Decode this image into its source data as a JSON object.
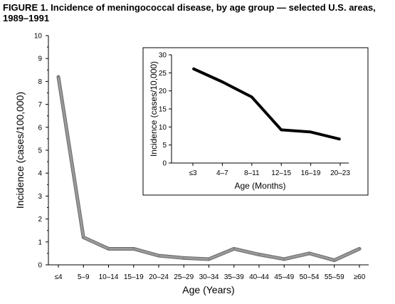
{
  "figure": {
    "title": "FIGURE 1. Incidence of meningococcal disease, by age group — selected U.S. areas, 1989–1991"
  },
  "chart_data": [
    {
      "type": "line",
      "xlabel": "Age (Years)",
      "ylabel": "Incidence (cases/100,000)",
      "ylim": [
        0,
        10
      ],
      "yticks": [
        "0",
        "1",
        "2",
        "3",
        "4",
        "5",
        "6",
        "7",
        "8",
        "9",
        "10"
      ],
      "categories": [
        "≤4",
        "5–9",
        "10–14",
        "15–19",
        "20–24",
        "25–29",
        "30–34",
        "35–39",
        "40–44",
        "45–49",
        "50–54",
        "55–59",
        "≥60"
      ],
      "values": [
        8.2,
        1.2,
        0.7,
        0.7,
        0.4,
        0.3,
        0.25,
        0.7,
        0.45,
        0.25,
        0.5,
        0.2,
        0.7
      ],
      "grid": false,
      "line_color": "#9a9a9a"
    },
    {
      "type": "line",
      "xlabel": "Age (Months)",
      "ylabel": "Incidence (cases/10,000)",
      "ylim": [
        0,
        30
      ],
      "yticks": [
        "0",
        "5",
        "10",
        "15",
        "20",
        "25",
        "30"
      ],
      "categories": [
        "≤3",
        "4–7",
        "8–11",
        "12–15",
        "16–19",
        "20–23"
      ],
      "values": [
        26.2,
        22.5,
        18.3,
        9.2,
        8.6,
        6.6
      ],
      "grid": false,
      "line_color": "#000000"
    }
  ]
}
